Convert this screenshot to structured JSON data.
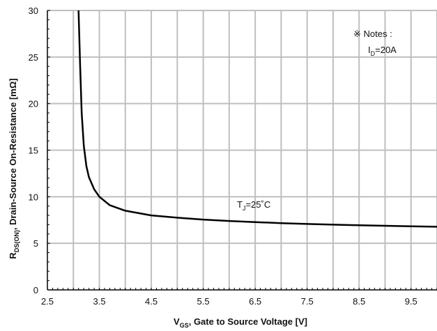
{
  "chart_data": {
    "type": "line",
    "title": "",
    "xlabel": {
      "main": "V",
      "sub": "GS",
      "rest": ", Gate to Source Voltage [V]"
    },
    "ylabel": {
      "main": "R",
      "sub": "DS(ON)",
      "rest": ", Drain-Source On-Resistance [mΩ]"
    },
    "xlim": [
      2.5,
      10.0
    ],
    "ylim": [
      0,
      30
    ],
    "x_ticks": [
      2.5,
      3.5,
      4.5,
      5.5,
      6.5,
      7.5,
      8.5,
      9.5
    ],
    "x_tick_labels": [
      "2.5",
      "3.5",
      "4.5",
      "5.5",
      "6.5",
      "7.5",
      "8.5",
      "9.5"
    ],
    "x_gridlines": [
      3.0,
      3.5,
      4.0,
      4.5,
      5.0,
      5.5,
      6.0,
      6.5,
      7.0,
      7.5,
      8.0,
      8.5,
      9.0,
      9.5,
      10.0
    ],
    "y_ticks": [
      0,
      5,
      10,
      15,
      20,
      25,
      30
    ],
    "y_tick_labels": [
      "0",
      "5",
      "10",
      "15",
      "20",
      "25",
      "30"
    ],
    "y_gridlines": [
      5,
      10,
      15,
      20,
      25,
      30
    ],
    "grid": true,
    "grid_color": "#bfbfbf",
    "line_color": "#000000",
    "series": [
      {
        "name": "",
        "x": [
          3.1,
          3.13,
          3.16,
          3.2,
          3.25,
          3.3,
          3.4,
          3.5,
          3.7,
          4.0,
          4.5,
          5.0,
          5.5,
          6.0,
          6.5,
          7.0,
          7.5,
          8.0,
          8.5,
          9.0,
          9.5,
          10.0
        ],
        "y": [
          30.0,
          24.0,
          19.0,
          15.5,
          13.3,
          12.1,
          10.8,
          10.0,
          9.1,
          8.5,
          8.0,
          7.75,
          7.55,
          7.4,
          7.28,
          7.17,
          7.08,
          7.0,
          6.94,
          6.88,
          6.83,
          6.78
        ]
      }
    ],
    "annotations": {
      "curve_label": {
        "main": "T",
        "sub": "J",
        "rest": "=25˚C"
      },
      "notes_title": "※ Notes :",
      "notes_line": {
        "main": "I",
        "sub": "D",
        "rest": "=20A"
      }
    }
  }
}
